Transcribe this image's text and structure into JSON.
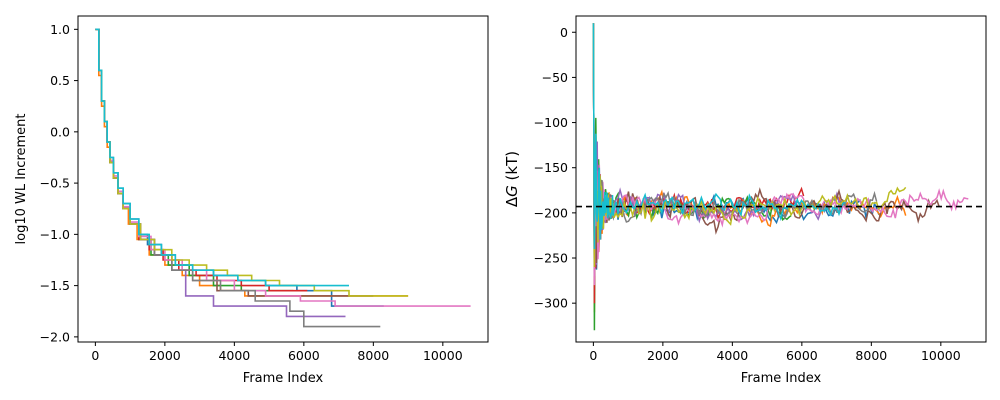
{
  "colors": [
    "#1f77b4",
    "#ff7f0e",
    "#2ca02c",
    "#d62728",
    "#9467bd",
    "#8c564b",
    "#e377c2",
    "#7f7f7f",
    "#bcbd22",
    "#17becf"
  ],
  "chart_data": [
    {
      "type": "line",
      "xlabel": "Frame Index",
      "ylabel": "log10 WL Increment",
      "xlim": [
        -500,
        11300
      ],
      "ylim": [
        -2.05,
        1.13
      ],
      "xticks": [
        0,
        2000,
        4000,
        6000,
        8000,
        10000
      ],
      "xtick_labels": [
        "0",
        "2000",
        "4000",
        "6000",
        "8000",
        "10000"
      ],
      "yticks": [
        1.0,
        0.5,
        0.0,
        -0.5,
        -1.0,
        -1.5,
        -2.0
      ],
      "ytick_labels": [
        "1.0",
        "0.5",
        "0.0",
        "−0.5",
        "−1.0",
        "−1.5",
        "−2.0"
      ],
      "grid": false,
      "series_style": "step",
      "series": [
        {
          "x": [
            0,
            100,
            180,
            260,
            340,
            420,
            520,
            650,
            800,
            1000,
            1250,
            1500,
            1900,
            2300,
            2800,
            3400,
            4100,
            4900,
            5800,
            6800,
            8300
          ],
          "y": [
            1.0,
            0.6,
            0.3,
            0.1,
            -0.1,
            -0.25,
            -0.4,
            -0.55,
            -0.7,
            -0.85,
            -1.0,
            -1.1,
            -1.2,
            -1.3,
            -1.35,
            -1.4,
            -1.45,
            -1.5,
            -1.55,
            -1.7,
            -1.7
          ]
        },
        {
          "x": [
            0,
            100,
            180,
            260,
            340,
            420,
            520,
            650,
            800,
            950,
            1200,
            1550,
            2000,
            2500,
            3000,
            3600,
            4300,
            5100,
            6000,
            7000,
            9000
          ],
          "y": [
            1.0,
            0.55,
            0.25,
            0.05,
            -0.15,
            -0.3,
            -0.45,
            -0.6,
            -0.75,
            -0.9,
            -1.05,
            -1.2,
            -1.3,
            -1.4,
            -1.5,
            -1.55,
            -1.6,
            -1.6,
            -1.6,
            -1.6,
            -1.6
          ]
        },
        {
          "x": [
            0,
            100,
            180,
            260,
            340,
            420,
            520,
            650,
            800,
            1000,
            1250,
            1600,
            2100,
            2700,
            3400,
            4200,
            5100,
            5700
          ],
          "y": [
            1.0,
            0.6,
            0.3,
            0.1,
            -0.1,
            -0.3,
            -0.45,
            -0.6,
            -0.75,
            -0.9,
            -1.05,
            -1.2,
            -1.3,
            -1.4,
            -1.5,
            -1.55,
            -1.55,
            -1.55
          ]
        },
        {
          "x": [
            0,
            100,
            180,
            260,
            340,
            420,
            520,
            650,
            800,
            1000,
            1250,
            1550,
            1950,
            2400,
            2900,
            3500,
            4200,
            5000,
            6100
          ],
          "y": [
            1.0,
            0.6,
            0.3,
            0.1,
            -0.1,
            -0.28,
            -0.45,
            -0.6,
            -0.75,
            -0.9,
            -1.05,
            -1.15,
            -1.25,
            -1.35,
            -1.4,
            -1.45,
            -1.5,
            -1.55,
            -1.55
          ]
        },
        {
          "x": [
            0,
            100,
            180,
            260,
            340,
            420,
            520,
            650,
            800,
            1000,
            1300,
            1700,
            2200,
            2600,
            3400,
            4200,
            5500,
            5700,
            6200,
            7200
          ],
          "y": [
            1.0,
            0.6,
            0.3,
            0.1,
            -0.1,
            -0.3,
            -0.45,
            -0.6,
            -0.75,
            -0.9,
            -1.05,
            -1.2,
            -1.35,
            -1.6,
            -1.7,
            -1.7,
            -1.8,
            -1.8,
            -1.8,
            -1.8
          ]
        },
        {
          "x": [
            0,
            100,
            180,
            260,
            340,
            420,
            520,
            650,
            800,
            1000,
            1300,
            1700,
            2200,
            2800,
            3500,
            4400,
            5200,
            6200,
            7200,
            8000
          ],
          "y": [
            1.0,
            0.6,
            0.3,
            0.1,
            -0.1,
            -0.3,
            -0.45,
            -0.6,
            -0.75,
            -0.9,
            -1.05,
            -1.2,
            -1.35,
            -1.45,
            -1.55,
            -1.6,
            -1.6,
            -1.6,
            -1.6,
            -1.6
          ]
        },
        {
          "x": [
            0,
            100,
            180,
            260,
            340,
            420,
            520,
            650,
            800,
            1000,
            1250,
            1600,
            2000,
            2500,
            3200,
            4000,
            4900,
            5900,
            6900,
            7800,
            8600,
            10800
          ],
          "y": [
            1.0,
            0.6,
            0.3,
            0.1,
            -0.1,
            -0.28,
            -0.43,
            -0.58,
            -0.73,
            -0.88,
            -1.02,
            -1.15,
            -1.25,
            -1.35,
            -1.45,
            -1.55,
            -1.6,
            -1.65,
            -1.7,
            -1.7,
            -1.7,
            -1.7
          ]
        },
        {
          "x": [
            0,
            100,
            180,
            260,
            340,
            420,
            520,
            650,
            800,
            1000,
            1300,
            1700,
            2200,
            2800,
            3600,
            4600,
            5600,
            6000,
            8200
          ],
          "y": [
            1.0,
            0.6,
            0.3,
            0.1,
            -0.1,
            -0.3,
            -0.45,
            -0.6,
            -0.75,
            -0.9,
            -1.05,
            -1.2,
            -1.35,
            -1.45,
            -1.55,
            -1.65,
            -1.75,
            -1.9,
            -1.9
          ]
        },
        {
          "x": [
            0,
            100,
            180,
            260,
            340,
            420,
            520,
            650,
            800,
            1000,
            1300,
            1700,
            2200,
            2700,
            3200,
            3800,
            4500,
            5300,
            6300,
            7300,
            8600,
            9000
          ],
          "y": [
            1.0,
            0.6,
            0.3,
            0.1,
            -0.1,
            -0.3,
            -0.45,
            -0.6,
            -0.75,
            -0.9,
            -1.05,
            -1.15,
            -1.25,
            -1.3,
            -1.35,
            -1.4,
            -1.45,
            -1.5,
            -1.55,
            -1.6,
            -1.6,
            -1.6
          ]
        },
        {
          "x": [
            0,
            100,
            180,
            260,
            340,
            420,
            520,
            650,
            800,
            1000,
            1250,
            1550,
            1900,
            2300,
            2800,
            3400,
            4100,
            4900,
            5800,
            6700,
            7300
          ],
          "y": [
            1.0,
            0.6,
            0.3,
            0.1,
            -0.1,
            -0.25,
            -0.4,
            -0.55,
            -0.7,
            -0.85,
            -1.0,
            -1.1,
            -1.2,
            -1.3,
            -1.35,
            -1.4,
            -1.45,
            -1.5,
            -1.5,
            -1.5,
            -1.5
          ]
        }
      ]
    },
    {
      "type": "line",
      "xlabel": "Frame Index",
      "ylabel": "ΔG (kT)",
      "ylabel_parts": {
        "delta": "Δ",
        "var": "G",
        "unit": " (kT)"
      },
      "xlim": [
        -500,
        11300
      ],
      "ylim": [
        -343,
        18
      ],
      "xticks": [
        0,
        2000,
        4000,
        6000,
        8000,
        10000
      ],
      "xtick_labels": [
        "0",
        "2000",
        "4000",
        "6000",
        "8000",
        "10000"
      ],
      "yticks": [
        0,
        -50,
        -100,
        -150,
        -200,
        -250,
        -300
      ],
      "ytick_labels": [
        "0",
        "−50",
        "−100",
        "−150",
        "−200",
        "−250",
        "−300"
      ],
      "grid": false,
      "reference_line": {
        "y": -193,
        "style": "dashed",
        "color": "#000000"
      },
      "series_style": "noisy-line",
      "series": [
        {
          "end": 8300,
          "min": -285,
          "seed": 11
        },
        {
          "end": 9000,
          "min": -310,
          "seed": 23
        },
        {
          "end": 5700,
          "min": -330,
          "seed": 37
        },
        {
          "end": 6100,
          "min": -300,
          "seed": 41
        },
        {
          "end": 7200,
          "min": -270,
          "seed": 53
        },
        {
          "end": 10000,
          "min": -260,
          "seed": 67
        },
        {
          "end": 10800,
          "min": -280,
          "seed": 79
        },
        {
          "end": 8200,
          "min": -250,
          "seed": 83
        },
        {
          "end": 9000,
          "min": -260,
          "seed": 97
        },
        {
          "end": 7300,
          "min": -240,
          "seed": 101
        }
      ]
    }
  ]
}
